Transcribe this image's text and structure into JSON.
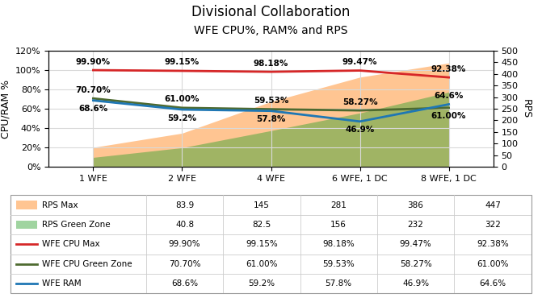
{
  "chart_data": {
    "type": "line",
    "title": "Divisional Collaboration",
    "subtitle": "WFE CPU%, RAM% and RPS",
    "categories": [
      "1 WFE",
      "2 WFE",
      "4 WFE",
      "6 WFE, 1 DC",
      "8 WFE, 1 DC"
    ],
    "series": [
      {
        "name": "RPS Max",
        "type": "area",
        "axis": "y2",
        "color": "#ff7f0e",
        "values": [
          83.9,
          145,
          281,
          386,
          447
        ]
      },
      {
        "name": "RPS Green Zone",
        "type": "area",
        "axis": "y2",
        "color": "#2ca02c",
        "values": [
          40.8,
          82.5,
          156,
          232,
          322
        ]
      },
      {
        "name": "WFE CPU Max",
        "type": "line",
        "color": "#d62728",
        "values": [
          99.9,
          99.15,
          98.18,
          99.47,
          92.38
        ],
        "value_labels": [
          "99.90%",
          "99.15%",
          "98.18%",
          "99.47%",
          "92.38%"
        ]
      },
      {
        "name": "WFE CPU Green Zone",
        "type": "line",
        "color": "#4E6A30",
        "values": [
          70.7,
          61.0,
          59.53,
          58.27,
          61.0
        ],
        "value_labels": [
          "70.70%",
          "61.00%",
          "59.53%",
          "58.27%",
          "61.00%"
        ]
      },
      {
        "name": "WFE RAM",
        "type": "line",
        "color": "#1f77b4",
        "values": [
          68.6,
          59.2,
          57.8,
          46.9,
          64.6
        ],
        "value_labels": [
          "68.6%",
          "59.2%",
          "57.8%",
          "46.9%",
          "64.6%"
        ]
      }
    ],
    "y_label": "CPU/RAM %",
    "y2_label": "RPS",
    "ylim": [
      0,
      120
    ],
    "yticks": [
      {
        "value": 0,
        "label": "0%"
      },
      {
        "value": 20,
        "label": "20%"
      },
      {
        "value": 40,
        "label": "40%"
      },
      {
        "value": 60,
        "label": "60%"
      },
      {
        "value": 80,
        "label": "80%"
      },
      {
        "value": 100,
        "label": "100%"
      },
      {
        "value": 120,
        "label": "120%"
      }
    ],
    "y2lim": [
      0,
      500
    ],
    "y2ticks": [
      0,
      50,
      100,
      150,
      200,
      250,
      300,
      350,
      400,
      450,
      500
    ],
    "grid": true,
    "legend": "bottom",
    "data_labels": true
  }
}
